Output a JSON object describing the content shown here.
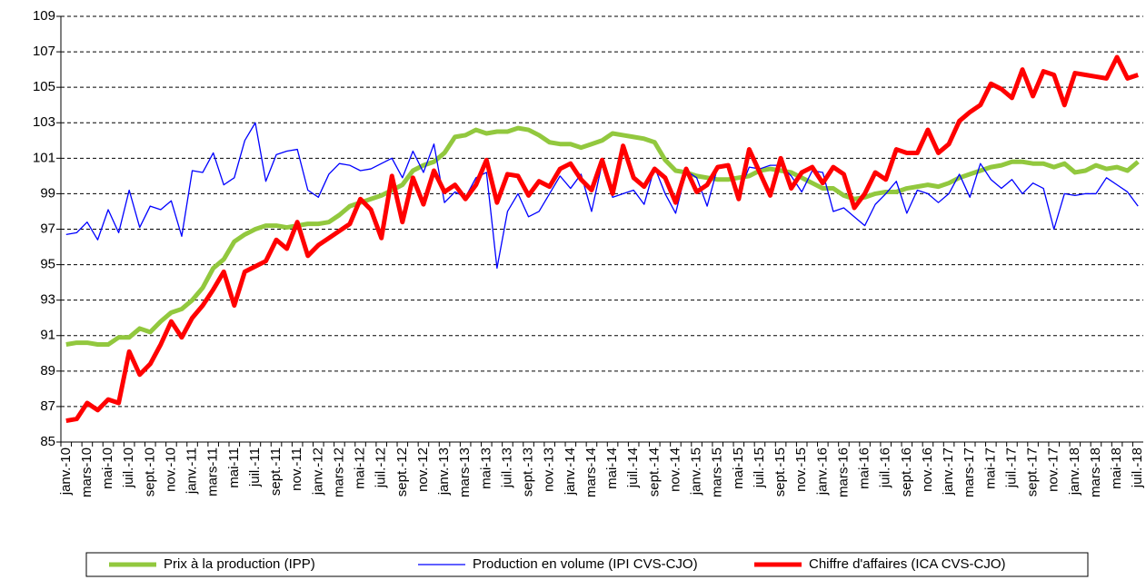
{
  "chart_data": {
    "type": "line",
    "categories": [
      "janv.-10",
      null,
      "mars-10",
      null,
      "mai-10",
      null,
      "juil.-10",
      null,
      "sept.-10",
      null,
      "nov.-10",
      null,
      "janv.-11",
      null,
      "mars-11",
      null,
      "mai-11",
      null,
      "juil.-11",
      null,
      "sept.-11",
      null,
      "nov.-11",
      null,
      "janv.-12",
      null,
      "mars-12",
      null,
      "mai-12",
      null,
      "juil.-12",
      null,
      "sept.-12",
      null,
      "nov.-12",
      null,
      "janv.-13",
      null,
      "mars-13",
      null,
      "mai-13",
      null,
      "juil.-13",
      null,
      "sept.-13",
      null,
      "nov.-13",
      null,
      "janv.-14",
      null,
      "mars-14",
      null,
      "mai-14",
      null,
      "juil.-14",
      null,
      "sept.-14",
      null,
      "nov.-14",
      null,
      "janv.-15",
      null,
      "mars-15",
      null,
      "mai-15",
      null,
      "juil.-15",
      null,
      "sept.-15",
      null,
      "nov.-15",
      null,
      "janv.-16",
      null,
      "mars-16",
      null,
      "mai-16",
      null,
      "juil.-16",
      null,
      "sept.-16",
      null,
      "nov.-16",
      null,
      "janv.-17",
      null,
      "mars-17",
      null,
      "mai-17",
      null,
      "juil.-17",
      null,
      "sept.-17",
      null,
      "nov.-17",
      null,
      "janv.-18",
      null,
      "mars-18",
      null,
      "mai-18",
      null,
      "juil.-18"
    ],
    "series": [
      {
        "name": "Prix à la production (IPP)",
        "color": "#92c83e",
        "width": 5,
        "values": [
          90.5,
          90.6,
          90.6,
          90.5,
          90.5,
          90.9,
          90.9,
          91.4,
          91.2,
          91.8,
          92.3,
          92.5,
          93.0,
          93.7,
          94.8,
          95.3,
          96.3,
          96.7,
          97.0,
          97.2,
          97.2,
          97.1,
          97.2,
          97.3,
          97.3,
          97.4,
          97.8,
          98.3,
          98.5,
          98.7,
          98.9,
          99.2,
          99.5,
          100.3,
          100.6,
          100.8,
          101.3,
          102.2,
          102.3,
          102.6,
          102.4,
          102.5,
          102.5,
          102.7,
          102.6,
          102.3,
          101.9,
          101.8,
          101.8,
          101.6,
          101.8,
          102.0,
          102.4,
          102.3,
          102.2,
          102.1,
          101.9,
          100.9,
          100.3,
          100.2,
          100.0,
          99.9,
          99.8,
          99.8,
          99.9,
          100.0,
          100.3,
          100.4,
          100.3,
          100.2,
          99.9,
          99.6,
          99.3,
          99.3,
          98.9,
          98.7,
          98.8,
          99.0,
          99.1,
          99.1,
          99.3,
          99.4,
          99.5,
          99.4,
          99.6,
          99.9,
          100.1,
          100.3,
          100.5,
          100.6,
          100.8,
          100.8,
          100.7,
          100.7,
          100.5,
          100.7,
          100.2,
          100.3,
          100.6,
          100.4,
          100.5,
          100.3,
          100.8
        ]
      },
      {
        "name": "Production en volume (IPI CVS-CJO)",
        "color": "#0000ff",
        "width": 1.3,
        "values": [
          96.7,
          96.8,
          97.4,
          96.4,
          98.1,
          96.8,
          99.2,
          97.1,
          98.3,
          98.1,
          98.6,
          96.6,
          100.3,
          100.2,
          101.3,
          99.5,
          99.9,
          102.0,
          103.0,
          99.7,
          101.2,
          101.4,
          101.5,
          99.2,
          98.8,
          100.1,
          100.7,
          100.6,
          100.3,
          100.4,
          100.7,
          101.0,
          99.9,
          101.4,
          100.2,
          101.8,
          98.5,
          99.1,
          98.8,
          99.9,
          100.2,
          94.8,
          98.0,
          99.0,
          97.7,
          98.0,
          99.0,
          100.0,
          99.3,
          100.1,
          98.0,
          100.7,
          98.8,
          99.0,
          99.2,
          98.4,
          100.5,
          99.0,
          97.9,
          100.3,
          99.9,
          98.3,
          100.5,
          100.5,
          99.0,
          100.5,
          100.4,
          100.6,
          100.6,
          100.0,
          99.1,
          100.3,
          100.2,
          98.0,
          98.2,
          97.7,
          97.2,
          98.4,
          99.0,
          99.7,
          97.9,
          99.2,
          99.0,
          98.5,
          99.0,
          100.1,
          98.8,
          100.7,
          99.8,
          99.3,
          99.8,
          99.0,
          99.6,
          99.3,
          97.0,
          99.0,
          98.9,
          99.0,
          99.0,
          99.9,
          99.5,
          99.1,
          98.3
        ]
      },
      {
        "name": "Chiffre d'affaires (ICA CVS-CJO)",
        "color": "#ff0000",
        "width": 5,
        "values": [
          86.2,
          86.3,
          87.2,
          86.8,
          87.4,
          87.2,
          90.1,
          88.8,
          89.4,
          90.5,
          91.8,
          90.9,
          92.0,
          92.7,
          93.6,
          94.6,
          92.7,
          94.6,
          94.9,
          95.2,
          96.4,
          95.9,
          97.4,
          95.5,
          96.1,
          96.5,
          96.9,
          97.3,
          98.7,
          98.1,
          96.5,
          100.0,
          97.4,
          99.9,
          98.4,
          100.3,
          99.1,
          99.5,
          98.7,
          99.5,
          100.9,
          98.5,
          100.1,
          100.0,
          98.9,
          99.7,
          99.4,
          100.4,
          100.7,
          99.8,
          99.2,
          100.9,
          99.0,
          101.7,
          99.9,
          99.4,
          100.4,
          99.9,
          98.5,
          100.4,
          99.1,
          99.5,
          100.5,
          100.6,
          98.7,
          101.5,
          100.2,
          98.9,
          101.0,
          99.3,
          100.2,
          100.5,
          99.6,
          100.5,
          100.1,
          98.2,
          99.0,
          100.2,
          99.8,
          101.5,
          101.3,
          101.3,
          102.6,
          101.3,
          101.8,
          103.1,
          103.6,
          104.0,
          105.2,
          104.9,
          104.4,
          106.0,
          104.5,
          105.9,
          105.7,
          104.0,
          105.8,
          105.7,
          105.6,
          105.5,
          106.7,
          105.5,
          105.7
        ]
      }
    ],
    "ylim": [
      85,
      109
    ],
    "yticks": [
      85,
      87,
      89,
      91,
      93,
      95,
      97,
      99,
      101,
      103,
      105,
      107,
      109
    ],
    "grid": true,
    "legend": "bottom"
  }
}
